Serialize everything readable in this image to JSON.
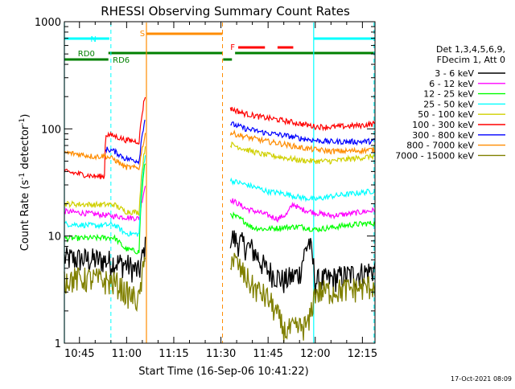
{
  "chart_data": {
    "type": "line",
    "title": "RHESSI Observing Summary Count Rates",
    "xlabel": "Start Time (16-Sep-06 10:41:22)",
    "ylabel": "Count Rate (s",
    "ylabel_sup1": "-1",
    "ylabel_mid": " detector",
    "ylabel_sup2": "-1",
    "ylabel_end": ")",
    "yscale": "log",
    "ylim": [
      1,
      1000
    ],
    "xlim_minutes": [
      40.2,
      139.0
    ],
    "x_ticks": [
      {
        "label": "10:45",
        "m": 45
      },
      {
        "label": "11:00",
        "m": 60
      },
      {
        "label": "11:15",
        "m": 75
      },
      {
        "label": "11:30",
        "m": 90
      },
      {
        "label": "11:45",
        "m": 105
      },
      {
        "label": "12:00",
        "m": 120
      },
      {
        "label": "12:15",
        "m": 135
      }
    ],
    "y_ticks": [
      {
        "label": "1",
        "v": 1
      },
      {
        "label": "10",
        "v": 10
      },
      {
        "label": "100",
        "v": 100
      },
      {
        "label": "1000",
        "v": 1000
      }
    ],
    "legend_header": [
      "Det 1,3,4,5,6,9,",
      "FDecim 1, Att 0"
    ],
    "timestamp": "17-Oct-2021 08:09",
    "series": [
      {
        "name": "3 - 6 keV",
        "color": "#000000",
        "pre": [
          [
            40.2,
            6.2
          ],
          [
            52,
            6.0
          ],
          [
            59.5,
            5.5
          ],
          [
            64,
            4.6
          ],
          [
            66,
            8
          ]
        ],
        "post": [
          [
            93,
            10
          ],
          [
            95,
            9
          ],
          [
            100,
            7.5
          ],
          [
            104,
            5
          ],
          [
            110,
            3.8
          ],
          [
            115,
            4.5
          ],
          [
            118,
            9
          ],
          [
            120,
            3.8
          ],
          [
            125,
            4.0
          ],
          [
            130,
            4.3
          ],
          [
            136,
            4.6
          ],
          [
            139,
            4.9
          ]
        ]
      },
      {
        "name": "6 - 12 keV",
        "color": "#ff00ff",
        "pre": [
          [
            40.2,
            17
          ],
          [
            50,
            16
          ],
          [
            59.5,
            15
          ],
          [
            64,
            14.6
          ],
          [
            66,
            30
          ]
        ],
        "post": [
          [
            93,
            22
          ],
          [
            98,
            18
          ],
          [
            104,
            16
          ],
          [
            108,
            14.5
          ],
          [
            111,
            16
          ],
          [
            113,
            20
          ],
          [
            115,
            18
          ],
          [
            120,
            16.5
          ],
          [
            125,
            15.5
          ],
          [
            130,
            16
          ],
          [
            135,
            16.8
          ],
          [
            139,
            17.4
          ]
        ]
      },
      {
        "name": "12 - 25 keV",
        "color": "#00ff00",
        "pre": [
          [
            40.2,
            9.5
          ],
          [
            50,
            9.6
          ],
          [
            56,
            9.7
          ],
          [
            59.5,
            7.6
          ],
          [
            64,
            7.1
          ],
          [
            66,
            50
          ]
        ],
        "post": [
          [
            93,
            16
          ],
          [
            97,
            14
          ],
          [
            100,
            12
          ],
          [
            104,
            11.6
          ],
          [
            110,
            12
          ],
          [
            115,
            12.3
          ],
          [
            120,
            11.5
          ],
          [
            125,
            12
          ],
          [
            130,
            12.6
          ],
          [
            135,
            13
          ],
          [
            139,
            13.2
          ]
        ]
      },
      {
        "name": "25 - 50 keV",
        "color": "#00ffff",
        "pre": [
          [
            40.2,
            13
          ],
          [
            50,
            12.5
          ],
          [
            56,
            12.8
          ],
          [
            59.5,
            10.6
          ],
          [
            64,
            10.4
          ],
          [
            66,
            60
          ]
        ],
        "post": [
          [
            93,
            33
          ],
          [
            100,
            29
          ],
          [
            105,
            26
          ],
          [
            110,
            25
          ],
          [
            115,
            23
          ],
          [
            120,
            22
          ],
          [
            125,
            23.5
          ],
          [
            130,
            24.5
          ],
          [
            135,
            25.5
          ],
          [
            139,
            26.5
          ]
        ]
      },
      {
        "name": "50 - 100 keV",
        "color": "#d0d000",
        "pre": [
          [
            40.2,
            20
          ],
          [
            50,
            19.6
          ],
          [
            56,
            19.7
          ],
          [
            59.5,
            17
          ],
          [
            64,
            16.6
          ],
          [
            66,
            70
          ]
        ],
        "post": [
          [
            93,
            72
          ],
          [
            98,
            64
          ],
          [
            103,
            58
          ],
          [
            110,
            54
          ],
          [
            115,
            51
          ],
          [
            120,
            50
          ],
          [
            125,
            50
          ],
          [
            130,
            52
          ],
          [
            135,
            54
          ],
          [
            139,
            56
          ]
        ]
      },
      {
        "name": "100 - 300 keV",
        "color": "#ff0000",
        "pre": [
          [
            40.2,
            40
          ],
          [
            45,
            38
          ],
          [
            50,
            36
          ],
          [
            53,
            36
          ],
          [
            53.3,
            89
          ],
          [
            56,
            86
          ],
          [
            59.5,
            79
          ],
          [
            64,
            76
          ],
          [
            66,
            210
          ]
        ],
        "post": [
          [
            93,
            155
          ],
          [
            97,
            140
          ],
          [
            102,
            130
          ],
          [
            108,
            122
          ],
          [
            115,
            112
          ],
          [
            120,
            105
          ],
          [
            125,
            104
          ],
          [
            130,
            106
          ],
          [
            135,
            108
          ],
          [
            139,
            112
          ]
        ]
      },
      {
        "name": "300 - 800 keV",
        "color": "#0000ff",
        "pre": [
          [
            53.3,
            65
          ],
          [
            56,
            62
          ],
          [
            59.5,
            53
          ],
          [
            64,
            50
          ],
          [
            66,
            130
          ]
        ],
        "post": [
          [
            93,
            112
          ],
          [
            98,
            100
          ],
          [
            104,
            92
          ],
          [
            110,
            87
          ],
          [
            115,
            82
          ],
          [
            120,
            78
          ],
          [
            125,
            76
          ],
          [
            130,
            76
          ],
          [
            135,
            76
          ],
          [
            139,
            77
          ]
        ]
      },
      {
        "name": "800 - 7000 keV",
        "color": "#ff8c00",
        "pre": [
          [
            40.2,
            60
          ],
          [
            45,
            58
          ],
          [
            50,
            55
          ],
          [
            53,
            56
          ],
          [
            56,
            52
          ],
          [
            59.5,
            44
          ],
          [
            64,
            43
          ],
          [
            66,
            90
          ]
        ],
        "post": [
          [
            93,
            92
          ],
          [
            98,
            84
          ],
          [
            104,
            77
          ],
          [
            110,
            72
          ],
          [
            115,
            67
          ],
          [
            120,
            64
          ],
          [
            125,
            62
          ],
          [
            130,
            62
          ],
          [
            135,
            63
          ],
          [
            139,
            64
          ]
        ]
      },
      {
        "name": "7000 - 15000 keV",
        "color": "#808000",
        "pre": [
          [
            40.2,
            4.0
          ],
          [
            50,
            4.0
          ],
          [
            57,
            3.6
          ],
          [
            59.5,
            3.0
          ],
          [
            64,
            2.5
          ],
          [
            66,
            6
          ]
        ],
        "post": [
          [
            93,
            6.5
          ],
          [
            97,
            4.5
          ],
          [
            100,
            3.4
          ],
          [
            105,
            2.6
          ],
          [
            110,
            1.3
          ],
          [
            115,
            1.4
          ],
          [
            118,
            1.5
          ],
          [
            120,
            3.0
          ],
          [
            125,
            3.1
          ],
          [
            130,
            3.2
          ],
          [
            135,
            3.3
          ],
          [
            139,
            3.5
          ]
        ]
      }
    ],
    "annotations": {
      "N_label": "N",
      "S_label": "S",
      "F_label": "F",
      "RD0_label": "RD0",
      "RD6_label": "RD6",
      "night_color": "#00ffff",
      "saa_color": "#ff8c00",
      "flare_color": "#ff0000",
      "decim_color": "#008000",
      "night_bars": [
        [
          40.2,
          54.5
        ],
        [
          119.5,
          139
        ]
      ],
      "saa_bar": [
        66.3,
        90.5
      ],
      "flare_dashes": [
        [
          95.5,
          104
        ],
        [
          108,
          113
        ]
      ],
      "decim_bars": [
        [
          40.2,
          54.2
        ],
        [
          54.2,
          90.5
        ],
        [
          90.7,
          93.5
        ],
        [
          94.5,
          139
        ]
      ],
      "vlines_solid": [
        {
          "m": 40.2,
          "color": "#00ffff"
        },
        {
          "m": 66.3,
          "color": "#ff8c00"
        },
        {
          "m": 119.5,
          "color": "#00ffff"
        }
      ],
      "vlines_dashed": [
        {
          "m": 55.0,
          "color": "#00ffff"
        },
        {
          "m": 90.5,
          "color": "#ff8c00"
        },
        {
          "m": 138.7,
          "color": "#00ffff"
        }
      ]
    }
  }
}
